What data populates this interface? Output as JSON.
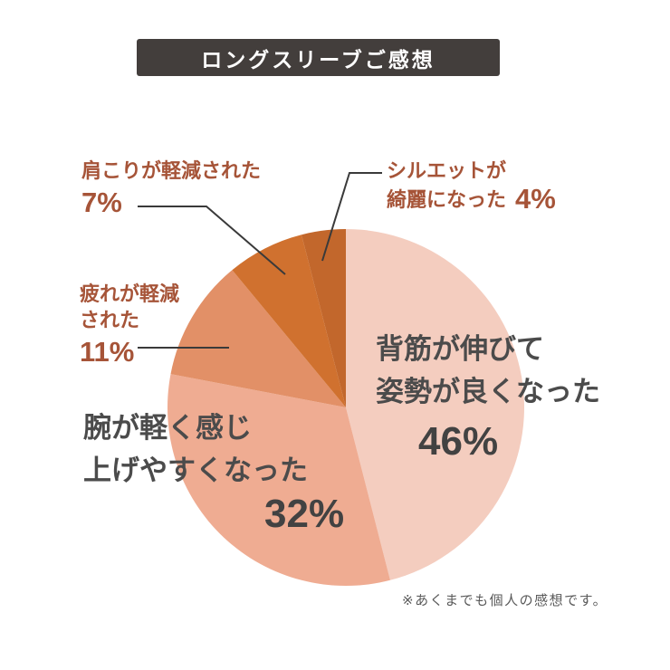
{
  "title": "ロングスリーブご感想",
  "footer_note": "※あくまでも個人の感想です。",
  "chart_data": {
    "type": "pie",
    "title": "ロングスリーブご感想",
    "start_angle_deg": 0,
    "direction": "clockwise",
    "slices": [
      {
        "label": "背筋が伸びて姿勢が良くなった",
        "value": 46,
        "color": "#f4cdbf"
      },
      {
        "label": "腕が軽く感じ上げやすくなった",
        "value": 32,
        "color": "#efac92"
      },
      {
        "label": "疲れが軽減された",
        "value": 11,
        "color": "#e29067"
      },
      {
        "label": "肩こりが軽減された",
        "value": 7,
        "color": "#d0712f"
      },
      {
        "label": "シルエットが綺麗になった",
        "value": 4,
        "color": "#c2672c"
      }
    ],
    "note": "※あくまでも個人の感想です。"
  },
  "labels": {
    "katakori": {
      "text": "肩こりが軽減された",
      "pct": "7%"
    },
    "silhouette": {
      "line1": "シルエットが",
      "line2": "綺麗になった",
      "pct": "4%"
    },
    "tsukare": {
      "line1": "疲れが軽減",
      "line2": "された",
      "pct": "11%"
    },
    "ude": {
      "line1": "腕が軽く感じ",
      "line2": "上げやすくなった",
      "pct": "32%"
    },
    "sesuji": {
      "line1": "背筋が伸びて",
      "line2": "姿勢が良くなった",
      "pct": "46%"
    }
  },
  "colors": {
    "background": "#ffffff",
    "title_bg": "#433e3c",
    "title_text": "#ffffff",
    "accent_rust": "#a65438",
    "text_dark": "#4b4b4b",
    "footer_gray": "#595959",
    "leader_line": "#3a3a3a"
  }
}
